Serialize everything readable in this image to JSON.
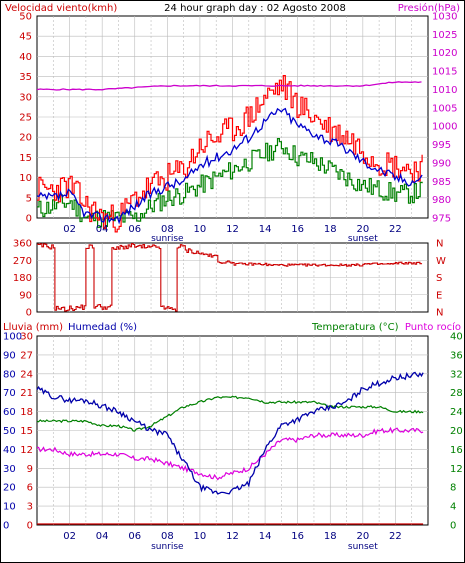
{
  "panel1": {
    "title": "24 hour graph day : 02 Agosto 2008",
    "left_label": "Velocidad viento(kmh)",
    "right_label": "Presión(hPa)"
  },
  "panel2": {
    "direction_labels": [
      "N",
      "W",
      "S",
      "E",
      "N"
    ]
  },
  "panel3": {
    "label_rain": "Lluvia (mm)",
    "label_humidity": "Humedad (%)",
    "label_temp": "Temperatura (°C)",
    "label_dew": "Punto rocío"
  },
  "time_axis": {
    "ticks": [
      "02",
      "04",
      "06",
      "08",
      "10",
      "12",
      "14",
      "16",
      "18",
      "20",
      "22"
    ],
    "sunrise_label": "sunrise",
    "sunset_label": "sunset",
    "sunrise_hour": 8,
    "sunset_hour": 20
  },
  "colors": {
    "wind_gust": "#ff0000",
    "wind_avg": "#0000cc",
    "wind_low": "#008000",
    "pressure": "#cc00cc",
    "direction": "#cc0000",
    "humidity": "#0000aa",
    "temperature": "#008000",
    "dewpoint": "#dd00dd",
    "rain": "#cc0000",
    "grid": "#bbbbbb"
  },
  "chart_data": [
    {
      "type": "line",
      "series": [
        {
          "name": "Velocidad viento(kmh)",
          "x": [
            0,
            1,
            2,
            3,
            4,
            5,
            6,
            7,
            8,
            9,
            10,
            11,
            12,
            13,
            14,
            15,
            16,
            17,
            18,
            19,
            20,
            21,
            22,
            23,
            23.7
          ],
          "values": [
            7,
            7,
            8,
            3,
            0,
            0,
            5,
            8,
            10,
            12,
            18,
            20,
            22,
            25,
            30,
            33,
            28,
            25,
            22,
            20,
            17,
            14,
            13,
            12,
            13
          ]
        },
        {
          "name": "Velocidad viento media",
          "x": [
            0,
            1,
            2,
            3,
            4,
            5,
            6,
            7,
            8,
            9,
            10,
            11,
            12,
            13,
            14,
            15,
            16,
            17,
            18,
            19,
            20,
            21,
            22,
            23,
            23.7
          ],
          "values": [
            5,
            5,
            6,
            1,
            0,
            0,
            3,
            6,
            8,
            9,
            13,
            15,
            17,
            20,
            24,
            27,
            23,
            21,
            19,
            17,
            14,
            12,
            10,
            9,
            10
          ]
        },
        {
          "name": "Velocidad viento mín",
          "x": [
            0,
            1,
            2,
            3,
            4,
            5,
            6,
            7,
            8,
            9,
            10,
            11,
            12,
            13,
            14,
            15,
            16,
            17,
            18,
            19,
            20,
            21,
            22,
            23,
            23.7
          ],
          "values": [
            2,
            3,
            4,
            0,
            0,
            0,
            0,
            3,
            5,
            6,
            8,
            10,
            12,
            14,
            16,
            18,
            15,
            14,
            12,
            10,
            8,
            7,
            6,
            6,
            7
          ]
        },
        {
          "name": "Presión(hPa)",
          "x": [
            0,
            4,
            8,
            12,
            16,
            20,
            22,
            23.7
          ],
          "values": [
            1010,
            1010,
            1011,
            1011,
            1011,
            1011,
            1012,
            1012
          ]
        }
      ],
      "left_axis": {
        "label": "Velocidad viento(kmh)",
        "ylim": [
          0,
          50
        ],
        "ticks": [
          0,
          5,
          10,
          15,
          20,
          25,
          30,
          35,
          40,
          45,
          50
        ]
      },
      "right_axis": {
        "label": "Presión(hPa)",
        "ylim": [
          975,
          1030
        ],
        "ticks": [
          975,
          980,
          985,
          990,
          995,
          1000,
          1005,
          1010,
          1015,
          1020,
          1025,
          1030
        ]
      },
      "xlim": [
        0,
        24
      ],
      "grid": true
    },
    {
      "type": "line",
      "series": [
        {
          "name": "Dirección viento",
          "x": [
            0,
            0.5,
            1,
            1.5,
            2,
            2.5,
            3,
            3.5,
            4,
            4.5,
            5,
            5.5,
            6,
            6.5,
            7,
            7.5,
            8,
            8.5,
            9,
            9.5,
            10,
            10.5,
            11,
            12,
            14,
            16,
            18,
            20,
            22,
            23.7
          ],
          "values": [
            345,
            340,
            20,
            15,
            20,
            25,
            340,
            30,
            25,
            330,
            340,
            345,
            340,
            335,
            340,
            20,
            15,
            340,
            320,
            310,
            300,
            290,
            260,
            250,
            245,
            245,
            245,
            250,
            255,
            250
          ]
        }
      ],
      "left_axis": {
        "ylim": [
          0,
          360
        ],
        "ticks": [
          0,
          90,
          180,
          270,
          360
        ]
      },
      "right_axis": {
        "labels": [
          "N",
          "W",
          "S",
          "E",
          "N"
        ]
      },
      "xlim": [
        0,
        24
      ],
      "grid": true
    },
    {
      "type": "line",
      "series": [
        {
          "name": "Humedad (%)",
          "x": [
            0,
            1,
            2,
            3,
            4,
            5,
            6,
            7,
            8,
            8.5,
            9,
            10,
            11,
            12,
            13,
            14,
            15,
            16,
            17,
            18,
            19,
            20,
            21,
            22,
            23,
            23.7
          ],
          "values": [
            72,
            68,
            66,
            66,
            63,
            60,
            55,
            50,
            48,
            40,
            34,
            20,
            17,
            18,
            22,
            40,
            53,
            56,
            60,
            62,
            65,
            72,
            75,
            78,
            79,
            80
          ]
        },
        {
          "name": "Temperatura (°C)",
          "x": [
            0,
            1,
            2,
            3,
            4,
            5,
            6,
            7,
            8,
            9,
            10,
            11,
            12,
            13,
            14,
            15,
            16,
            17,
            18,
            19,
            20,
            21,
            22,
            23,
            23.7
          ],
          "values": [
            22,
            22,
            22,
            22,
            21,
            21,
            20,
            21,
            23,
            25,
            26,
            27,
            27,
            27,
            26,
            26,
            26,
            26,
            25,
            25,
            25,
            25,
            24,
            24,
            24
          ]
        },
        {
          "name": "Punto rocío",
          "x": [
            0,
            1,
            2,
            3,
            4,
            5,
            6,
            7,
            8,
            9,
            10,
            11,
            12,
            13,
            14,
            15,
            16,
            17,
            18,
            19,
            20,
            21,
            22,
            23,
            23.7
          ],
          "values": [
            16,
            16,
            15,
            15,
            15,
            15,
            14,
            14,
            13,
            12,
            11,
            10,
            11,
            12,
            15,
            18,
            18,
            19,
            19,
            19,
            19,
            20,
            20,
            20,
            20
          ]
        },
        {
          "name": "Lluvia (mm)",
          "x": [
            0,
            23.7
          ],
          "values": [
            0,
            0
          ]
        }
      ],
      "left_axis_rain": {
        "label": "Lluvia (mm)",
        "ylim": [
          0,
          30
        ],
        "ticks": [
          0,
          3,
          6,
          9,
          12,
          15,
          18,
          21,
          24,
          27,
          30
        ]
      },
      "left_axis_humidity": {
        "label": "Humedad (%)",
        "ylim": [
          0,
          100
        ],
        "ticks": [
          0,
          10,
          20,
          30,
          40,
          50,
          60,
          70,
          80,
          90,
          100
        ]
      },
      "right_axis": {
        "label": "Temperatura (°C)",
        "ylim": [
          0,
          40
        ],
        "ticks": [
          0,
          4,
          8,
          12,
          16,
          20,
          24,
          28,
          32,
          36,
          40
        ]
      },
      "xlim": [
        0,
        24
      ],
      "grid": true
    }
  ]
}
